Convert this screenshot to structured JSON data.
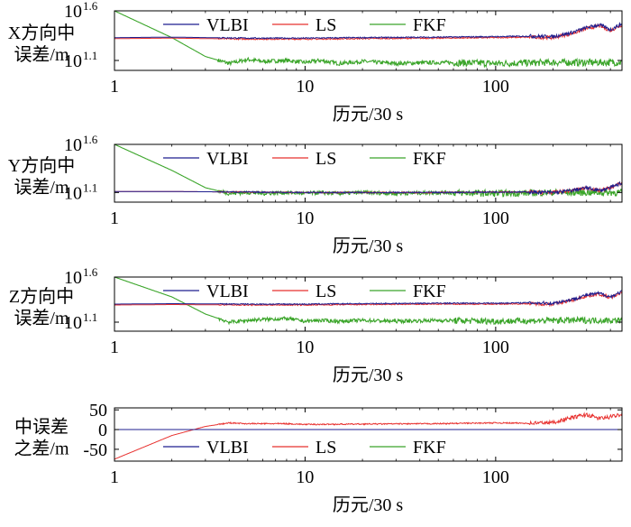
{
  "colors": {
    "vlbi": "#1f1f8f",
    "ls": "#e8312f",
    "fkf": "#3ba52a",
    "axis": "#000000"
  },
  "chart_data": [
    {
      "type": "line",
      "title": "",
      "ylabel_lines": [
        "X方向中",
        "误差/m"
      ],
      "xlabel": "历元/30 s",
      "x_scale": "log",
      "xlim": [
        1,
        460
      ],
      "x_ticks": [
        1,
        10,
        100
      ],
      "x_tick_labels": [
        "1",
        "10",
        "100"
      ],
      "y_scale": "log10",
      "ylim_exp": [
        1.0,
        1.6
      ],
      "y_ticks_exp": [
        1.6,
        1.1
      ],
      "y_tick_labels": [
        {
          "base": "10",
          "exp": "1.6"
        },
        {
          "base": "10",
          "exp": "1.1"
        }
      ],
      "legend": [
        "VLBI",
        "LS",
        "FKF"
      ],
      "legend_position": "top-center",
      "series": [
        {
          "name": "VLBI",
          "color_key": "vlbi",
          "x": [
            1,
            2,
            5,
            10,
            20,
            50,
            100,
            150,
            200,
            250,
            300,
            350,
            400,
            460
          ],
          "y": [
            1.33,
            1.335,
            1.325,
            1.325,
            1.33,
            1.335,
            1.34,
            1.345,
            1.34,
            1.38,
            1.43,
            1.46,
            1.41,
            1.47
          ]
        },
        {
          "name": "LS",
          "color_key": "ls",
          "x": [
            1,
            2,
            5,
            10,
            20,
            50,
            100,
            150,
            200,
            250,
            300,
            350,
            400,
            460
          ],
          "y": [
            1.32,
            1.325,
            1.315,
            1.315,
            1.32,
            1.325,
            1.33,
            1.335,
            1.33,
            1.37,
            1.42,
            1.45,
            1.4,
            1.46
          ]
        },
        {
          "name": "FKF",
          "color_key": "fkf",
          "x": [
            1,
            2,
            3,
            4,
            5,
            6,
            8,
            10,
            12,
            15,
            20,
            30,
            50,
            100,
            200,
            460
          ],
          "y": [
            1.6,
            1.33,
            1.14,
            1.07,
            1.11,
            1.09,
            1.1,
            1.08,
            1.1,
            1.07,
            1.09,
            1.07,
            1.08,
            1.07,
            1.08,
            1.08
          ]
        }
      ]
    },
    {
      "type": "line",
      "title": "",
      "ylabel_lines": [
        "Y方向中",
        "误差/m"
      ],
      "xlabel": "历元/30 s",
      "x_scale": "log",
      "xlim": [
        1,
        460
      ],
      "x_ticks": [
        1,
        10,
        100
      ],
      "x_tick_labels": [
        "1",
        "10",
        "100"
      ],
      "y_scale": "log10",
      "ylim_exp": [
        1.0,
        1.6
      ],
      "y_ticks_exp": [
        1.6,
        1.1
      ],
      "y_tick_labels": [
        {
          "base": "10",
          "exp": "1.6"
        },
        {
          "base": "10",
          "exp": "1.1"
        }
      ],
      "legend": [
        "VLBI",
        "LS",
        "FKF"
      ],
      "legend_position": "top-center",
      "series": [
        {
          "name": "VLBI",
          "color_key": "vlbi",
          "x": [
            1,
            2,
            5,
            10,
            20,
            50,
            100,
            150,
            200,
            250,
            300,
            350,
            400,
            460
          ],
          "y": [
            1.11,
            1.11,
            1.105,
            1.1,
            1.1,
            1.1,
            1.105,
            1.105,
            1.1,
            1.12,
            1.15,
            1.12,
            1.15,
            1.2
          ]
        },
        {
          "name": "LS",
          "color_key": "ls",
          "x": [
            1,
            2,
            5,
            10,
            20,
            50,
            100,
            150,
            200,
            250,
            300,
            350,
            400,
            460
          ],
          "y": [
            1.11,
            1.11,
            1.105,
            1.1,
            1.1,
            1.1,
            1.105,
            1.105,
            1.1,
            1.12,
            1.15,
            1.12,
            1.15,
            1.2
          ]
        },
        {
          "name": "FKF",
          "color_key": "fkf",
          "x": [
            1,
            2,
            3,
            4,
            5,
            6,
            8,
            10,
            12,
            15,
            20,
            30,
            50,
            100,
            200,
            460
          ],
          "y": [
            1.6,
            1.33,
            1.15,
            1.09,
            1.1,
            1.09,
            1.1,
            1.09,
            1.1,
            1.09,
            1.1,
            1.09,
            1.1,
            1.09,
            1.1,
            1.1
          ]
        }
      ]
    },
    {
      "type": "line",
      "title": "",
      "ylabel_lines": [
        "Z方向中",
        "误差/m"
      ],
      "xlabel": "历元/30 s",
      "x_scale": "log",
      "xlim": [
        1,
        460
      ],
      "x_ticks": [
        1,
        10,
        100
      ],
      "x_tick_labels": [
        "1",
        "10",
        "100"
      ],
      "y_scale": "log10",
      "ylim_exp": [
        1.0,
        1.6
      ],
      "y_ticks_exp": [
        1.6,
        1.1
      ],
      "y_tick_labels": [
        {
          "base": "10",
          "exp": "1.6"
        },
        {
          "base": "10",
          "exp": "1.1"
        }
      ],
      "legend": [
        "VLBI",
        "LS",
        "FKF"
      ],
      "legend_position": "top-center",
      "series": [
        {
          "name": "VLBI",
          "color_key": "vlbi",
          "x": [
            1,
            2,
            5,
            10,
            20,
            50,
            100,
            150,
            200,
            250,
            300,
            350,
            400,
            460
          ],
          "y": [
            1.3,
            1.305,
            1.3,
            1.3,
            1.305,
            1.31,
            1.31,
            1.315,
            1.31,
            1.35,
            1.4,
            1.42,
            1.38,
            1.44
          ]
        },
        {
          "name": "LS",
          "color_key": "ls",
          "x": [
            1,
            2,
            5,
            10,
            20,
            50,
            100,
            150,
            200,
            250,
            300,
            350,
            400,
            460
          ],
          "y": [
            1.29,
            1.295,
            1.29,
            1.29,
            1.295,
            1.3,
            1.3,
            1.305,
            1.3,
            1.34,
            1.39,
            1.41,
            1.37,
            1.43
          ]
        },
        {
          "name": "FKF",
          "color_key": "fkf",
          "x": [
            1,
            2,
            3,
            4,
            5,
            6,
            8,
            10,
            12,
            15,
            20,
            30,
            50,
            100,
            200,
            460
          ],
          "y": [
            1.6,
            1.38,
            1.19,
            1.1,
            1.12,
            1.13,
            1.14,
            1.11,
            1.12,
            1.11,
            1.12,
            1.11,
            1.12,
            1.11,
            1.12,
            1.12
          ]
        }
      ]
    },
    {
      "type": "line",
      "title": "",
      "ylabel_lines": [
        "中误差",
        "之差/m"
      ],
      "xlabel": "历元/30 s",
      "x_scale": "log",
      "xlim": [
        1,
        460
      ],
      "x_ticks": [
        1,
        10,
        100
      ],
      "x_tick_labels": [
        "1",
        "10",
        "100"
      ],
      "y_scale": "linear",
      "ylim": [
        -80,
        55
      ],
      "y_ticks": [
        50,
        0,
        -50
      ],
      "y_tick_labels": [
        "50",
        "0",
        "-50"
      ],
      "legend": [
        "VLBI",
        "LS",
        "FKF"
      ],
      "legend_position": "bottom-center",
      "series": [
        {
          "name": "VLBI",
          "color_key": "vlbi",
          "x": [
            1,
            460
          ],
          "y": [
            0,
            0
          ]
        },
        {
          "name": "LS",
          "color_key": "ls",
          "x": [
            1,
            2,
            3,
            4,
            5,
            8,
            10,
            20,
            50,
            100,
            150,
            200,
            250,
            300,
            350,
            400,
            460
          ],
          "y": [
            -75,
            -15,
            8,
            17,
            15,
            15,
            13,
            14,
            15,
            17,
            16,
            18,
            30,
            38,
            28,
            32,
            40
          ]
        },
        {
          "name": "FKF",
          "color_key": "fkf",
          "x": [
            1,
            460
          ],
          "y": [
            0,
            0
          ]
        }
      ]
    }
  ]
}
